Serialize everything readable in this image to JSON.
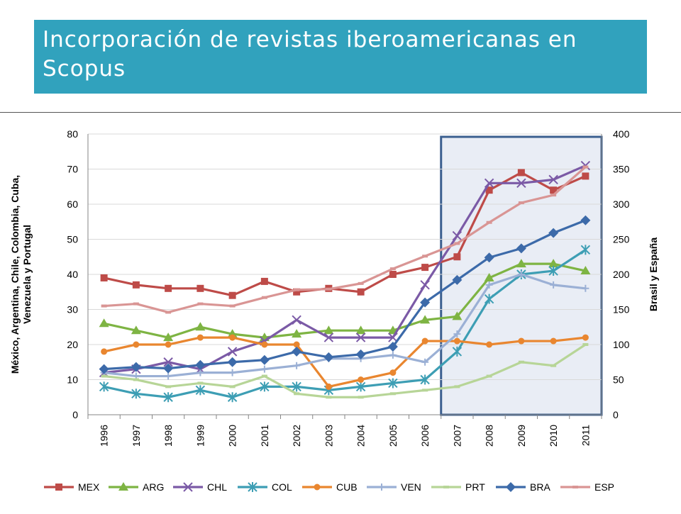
{
  "title": "Incorporación de revistas iberoamericanas en Scopus",
  "chart_data": {
    "type": "line",
    "categories": [
      "1996",
      "1997",
      "1998",
      "1999",
      "2000",
      "2001",
      "2002",
      "2003",
      "2004",
      "2005",
      "2006",
      "2007",
      "2008",
      "2009",
      "2010",
      "2011"
    ],
    "ylabel": "México, Argentina, Chile, Colombia, Cuba, Venezuela y Portugal",
    "y2label": "Brasil y España",
    "ylim": [
      0,
      80
    ],
    "y2lim": [
      0,
      400
    ],
    "yticks": [
      "0",
      "10",
      "20",
      "30",
      "40",
      "50",
      "60",
      "70",
      "80"
    ],
    "y2ticks": [
      "0",
      "50",
      "100",
      "150",
      "200",
      "250",
      "300",
      "350",
      "400"
    ],
    "grid": true,
    "legend_position": "bottom",
    "highlight_range": [
      "2007",
      "2011"
    ],
    "series": [
      {
        "name": "MEX",
        "color": "#be4b48",
        "marker": "square",
        "axis": "left",
        "values": [
          39,
          37,
          36,
          36,
          34,
          38,
          35,
          36,
          35,
          40,
          42,
          45,
          64,
          69,
          64,
          68
        ]
      },
      {
        "name": "ARG",
        "color": "#7eb443",
        "marker": "triangle",
        "axis": "left",
        "values": [
          26,
          24,
          22,
          25,
          23,
          22,
          23,
          24,
          24,
          24,
          27,
          28,
          39,
          43,
          43,
          41
        ]
      },
      {
        "name": "CHL",
        "color": "#7b5aa6",
        "marker": "x",
        "axis": "left",
        "values": [
          12,
          13,
          15,
          13,
          18,
          21,
          27,
          22,
          22,
          22,
          37,
          51,
          66,
          66,
          67,
          71
        ]
      },
      {
        "name": "COL",
        "color": "#3d9eb4",
        "marker": "star",
        "axis": "left",
        "values": [
          8,
          6,
          5,
          7,
          5,
          8,
          8,
          7,
          8,
          9,
          10,
          18,
          33,
          40,
          41,
          47
        ]
      },
      {
        "name": "CUB",
        "color": "#e9862f",
        "marker": "circle",
        "axis": "left",
        "values": [
          18,
          20,
          20,
          22,
          22,
          20,
          20,
          8,
          10,
          12,
          21,
          21,
          20,
          21,
          21,
          22
        ]
      },
      {
        "name": "VEN",
        "color": "#9bb0d5",
        "marker": "plus",
        "axis": "left",
        "values": [
          12,
          11,
          11,
          12,
          12,
          13,
          14,
          16,
          16,
          17,
          15,
          23,
          37,
          40,
          37,
          36
        ]
      },
      {
        "name": "PRT",
        "color": "#b7d597",
        "marker": "dash",
        "axis": "left",
        "values": [
          11,
          10,
          8,
          9,
          8,
          11,
          6,
          5,
          5,
          6,
          7,
          8,
          11,
          15,
          14,
          20
        ]
      },
      {
        "name": "BRA",
        "color": "#3c6aa9",
        "marker": "diamond",
        "axis": "right",
        "values": [
          65,
          68,
          66,
          71,
          75,
          78,
          90,
          82,
          86,
          97,
          160,
          192,
          224,
          237,
          259,
          277
        ]
      },
      {
        "name": "ESP",
        "color": "#d99594",
        "marker": "dash",
        "axis": "right",
        "values": [
          155,
          158,
          146,
          158,
          155,
          167,
          178,
          179,
          187,
          208,
          226,
          244,
          274,
          302,
          313,
          353
        ]
      }
    ]
  }
}
